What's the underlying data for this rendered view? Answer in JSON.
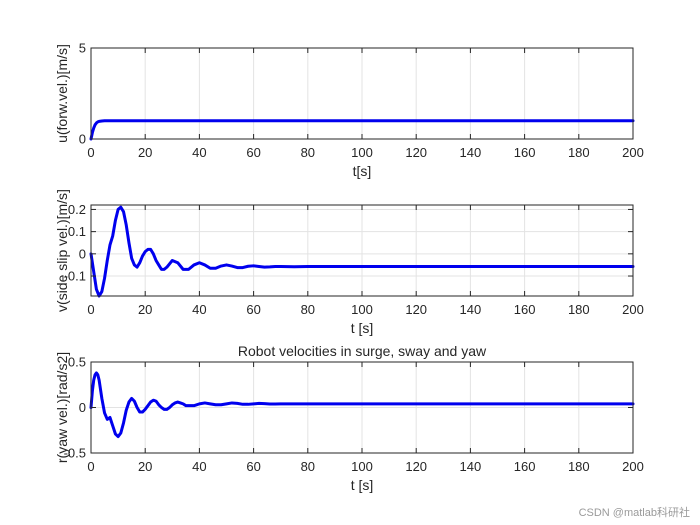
{
  "figure": {
    "watermark": "CSDN @matlab科研社",
    "line_color": "#0000ee",
    "grid_color": "#e3e3e3"
  },
  "chart_data": [
    {
      "type": "line",
      "title": "",
      "xlabel": "t[s]",
      "ylabel": "u(forw.vel.)[m/s]",
      "xlim": [
        0,
        200
      ],
      "ylim": [
        0,
        5
      ],
      "xticks": [
        0,
        20,
        40,
        60,
        80,
        100,
        120,
        140,
        160,
        180,
        200
      ],
      "yticks": [
        0,
        5
      ],
      "yticklabels": [
        "0",
        "5"
      ],
      "grid": true,
      "series": [
        {
          "x": [
            0,
            0.5,
            1,
            1.5,
            2,
            2.5,
            3,
            4,
            5,
            6,
            8,
            10,
            20,
            50,
            100,
            200
          ],
          "y": [
            0,
            0.35,
            0.6,
            0.78,
            0.88,
            0.94,
            0.97,
            0.99,
            1.0,
            1.0,
            1.0,
            1.0,
            1.0,
            1.0,
            1.0,
            1.0
          ]
        }
      ]
    },
    {
      "type": "line",
      "title": "",
      "xlabel": "t [s]",
      "ylabel": "v(side slip vel.)[m/s]",
      "xlim": [
        0,
        200
      ],
      "ylim": [
        -0.19,
        0.22
      ],
      "xticks": [
        0,
        20,
        40,
        60,
        80,
        100,
        120,
        140,
        160,
        180,
        200
      ],
      "yticks": [
        -0.1,
        0,
        0.1,
        0.2
      ],
      "yticklabels": [
        "-0.1",
        "0",
        "0.1",
        "0.2"
      ],
      "grid": true,
      "series": [
        {
          "x": [
            0,
            1,
            2,
            3,
            4,
            5,
            6,
            7,
            8,
            9,
            10,
            11,
            12,
            13,
            14,
            15,
            16,
            17,
            18,
            19,
            20,
            21,
            22,
            23,
            24,
            25,
            26,
            27,
            28,
            30,
            32,
            34,
            36,
            38,
            40,
            42,
            44,
            46,
            48,
            50,
            52,
            54,
            56,
            58,
            60,
            62,
            64,
            66,
            68,
            70,
            75,
            80,
            90,
            100,
            120,
            150,
            200
          ],
          "y": [
            0,
            -0.08,
            -0.16,
            -0.19,
            -0.17,
            -0.11,
            -0.03,
            0.04,
            0.08,
            0.15,
            0.2,
            0.21,
            0.19,
            0.13,
            0.05,
            -0.02,
            -0.05,
            -0.06,
            -0.04,
            -0.01,
            0.01,
            0.02,
            0.02,
            0.0,
            -0.03,
            -0.05,
            -0.07,
            -0.07,
            -0.06,
            -0.03,
            -0.04,
            -0.07,
            -0.07,
            -0.05,
            -0.04,
            -0.05,
            -0.065,
            -0.065,
            -0.055,
            -0.05,
            -0.055,
            -0.062,
            -0.062,
            -0.056,
            -0.054,
            -0.057,
            -0.06,
            -0.059,
            -0.057,
            -0.057,
            -0.058,
            -0.057,
            -0.057,
            -0.057,
            -0.057,
            -0.057,
            -0.057
          ]
        }
      ]
    },
    {
      "type": "line",
      "title": "Robot velocities in surge, sway and yaw",
      "xlabel": "t [s]",
      "ylabel": "r(yaw vel.)[rad/s2]",
      "xlim": [
        0,
        200
      ],
      "ylim": [
        -0.5,
        0.5
      ],
      "xticks": [
        0,
        20,
        40,
        60,
        80,
        100,
        120,
        140,
        160,
        180,
        200
      ],
      "yticks": [
        -0.5,
        0,
        0.5
      ],
      "yticklabels": [
        "-0.5",
        "0",
        "0.5"
      ],
      "grid": true,
      "series": [
        {
          "x": [
            0,
            0.5,
            1,
            1.5,
            2,
            2.5,
            3,
            4,
            5,
            6,
            7,
            8,
            9,
            10,
            11,
            12,
            13,
            14,
            15,
            16,
            17,
            18,
            19,
            20,
            21,
            22,
            23,
            24,
            25,
            26,
            27,
            28,
            29,
            30,
            31,
            32,
            33,
            34,
            35,
            36,
            38,
            40,
            42,
            44,
            46,
            48,
            50,
            52,
            54,
            56,
            58,
            60,
            62,
            64,
            66,
            68,
            70,
            80,
            90,
            100,
            120,
            150,
            200
          ],
          "y": [
            0,
            0.18,
            0.3,
            0.36,
            0.38,
            0.36,
            0.3,
            0.1,
            -0.06,
            -0.13,
            -0.11,
            -0.2,
            -0.29,
            -0.32,
            -0.28,
            -0.17,
            -0.03,
            0.06,
            0.1,
            0.07,
            0.0,
            -0.05,
            -0.05,
            -0.02,
            0.02,
            0.06,
            0.08,
            0.07,
            0.03,
            0.0,
            -0.02,
            -0.02,
            0.0,
            0.03,
            0.05,
            0.06,
            0.05,
            0.04,
            0.02,
            0.02,
            0.02,
            0.04,
            0.05,
            0.04,
            0.03,
            0.03,
            0.04,
            0.05,
            0.045,
            0.035,
            0.035,
            0.04,
            0.045,
            0.042,
            0.038,
            0.038,
            0.04,
            0.04,
            0.04,
            0.04,
            0.04,
            0.04,
            0.04
          ]
        }
      ]
    }
  ]
}
